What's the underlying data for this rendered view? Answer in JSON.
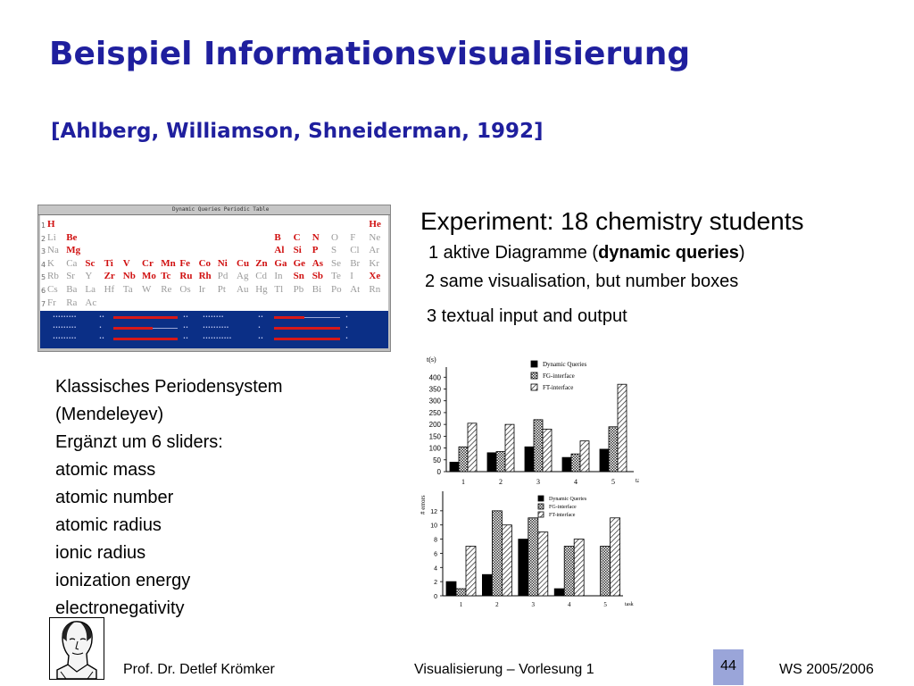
{
  "title": "Beispiel Informationsvisualisierung",
  "subtitle": "[Ahlberg, Williamson, Shneiderman, 1992]",
  "periodic_table": {
    "window_title": "Dynamic Queries Periodic Table",
    "rows": [
      [
        {
          "s": "H",
          "c": 0,
          "hi": true
        },
        {
          "s": "He",
          "c": 17,
          "hi": true
        }
      ],
      [
        {
          "s": "Li",
          "c": 0,
          "hi": false
        },
        {
          "s": "Be",
          "c": 1,
          "hi": true
        },
        {
          "s": "B",
          "c": 12,
          "hi": true
        },
        {
          "s": "C",
          "c": 13,
          "hi": true
        },
        {
          "s": "N",
          "c": 14,
          "hi": true
        },
        {
          "s": "O",
          "c": 15,
          "hi": false
        },
        {
          "s": "F",
          "c": 16,
          "hi": false
        },
        {
          "s": "Ne",
          "c": 17,
          "hi": false
        }
      ],
      [
        {
          "s": "Na",
          "c": 0,
          "hi": false
        },
        {
          "s": "Mg",
          "c": 1,
          "hi": true
        },
        {
          "s": "Al",
          "c": 12,
          "hi": true
        },
        {
          "s": "Si",
          "c": 13,
          "hi": true
        },
        {
          "s": "P",
          "c": 14,
          "hi": true
        },
        {
          "s": "S",
          "c": 15,
          "hi": false
        },
        {
          "s": "Cl",
          "c": 16,
          "hi": false
        },
        {
          "s": "Ar",
          "c": 17,
          "hi": false
        }
      ],
      [
        {
          "s": "K",
          "c": 0,
          "hi": false
        },
        {
          "s": "Ca",
          "c": 1,
          "hi": false
        },
        {
          "s": "Sc",
          "c": 2,
          "hi": true
        },
        {
          "s": "Ti",
          "c": 3,
          "hi": true
        },
        {
          "s": "V",
          "c": 4,
          "hi": true
        },
        {
          "s": "Cr",
          "c": 5,
          "hi": true
        },
        {
          "s": "Mn",
          "c": 6,
          "hi": true
        },
        {
          "s": "Fe",
          "c": 7,
          "hi": true
        },
        {
          "s": "Co",
          "c": 8,
          "hi": true
        },
        {
          "s": "Ni",
          "c": 9,
          "hi": true
        },
        {
          "s": "Cu",
          "c": 10,
          "hi": true
        },
        {
          "s": "Zn",
          "c": 11,
          "hi": true
        },
        {
          "s": "Ga",
          "c": 12,
          "hi": true
        },
        {
          "s": "Ge",
          "c": 13,
          "hi": true
        },
        {
          "s": "As",
          "c": 14,
          "hi": true
        },
        {
          "s": "Se",
          "c": 15,
          "hi": false
        },
        {
          "s": "Br",
          "c": 16,
          "hi": false
        },
        {
          "s": "Kr",
          "c": 17,
          "hi": false
        }
      ],
      [
        {
          "s": "Rb",
          "c": 0,
          "hi": false
        },
        {
          "s": "Sr",
          "c": 1,
          "hi": false
        },
        {
          "s": "Y",
          "c": 2,
          "hi": false
        },
        {
          "s": "Zr",
          "c": 3,
          "hi": true
        },
        {
          "s": "Nb",
          "c": 4,
          "hi": true
        },
        {
          "s": "Mo",
          "c": 5,
          "hi": true
        },
        {
          "s": "Tc",
          "c": 6,
          "hi": true
        },
        {
          "s": "Ru",
          "c": 7,
          "hi": true
        },
        {
          "s": "Rh",
          "c": 8,
          "hi": true
        },
        {
          "s": "Pd",
          "c": 9,
          "hi": false
        },
        {
          "s": "Ag",
          "c": 10,
          "hi": false
        },
        {
          "s": "Cd",
          "c": 11,
          "hi": false
        },
        {
          "s": "In",
          "c": 12,
          "hi": false
        },
        {
          "s": "Sn",
          "c": 13,
          "hi": true
        },
        {
          "s": "Sb",
          "c": 14,
          "hi": true
        },
        {
          "s": "Te",
          "c": 15,
          "hi": false
        },
        {
          "s": "I",
          "c": 16,
          "hi": false
        },
        {
          "s": "Xe",
          "c": 17,
          "hi": true
        }
      ],
      [
        {
          "s": "Cs",
          "c": 0,
          "hi": false
        },
        {
          "s": "Ba",
          "c": 1,
          "hi": false
        },
        {
          "s": "La",
          "c": 2,
          "hi": false
        },
        {
          "s": "Hf",
          "c": 3,
          "hi": false
        },
        {
          "s": "Ta",
          "c": 4,
          "hi": false
        },
        {
          "s": "W",
          "c": 5,
          "hi": false
        },
        {
          "s": "Re",
          "c": 6,
          "hi": false
        },
        {
          "s": "Os",
          "c": 7,
          "hi": false
        },
        {
          "s": "Ir",
          "c": 8,
          "hi": false
        },
        {
          "s": "Pt",
          "c": 9,
          "hi": false
        },
        {
          "s": "Au",
          "c": 10,
          "hi": false
        },
        {
          "s": "Hg",
          "c": 11,
          "hi": false
        },
        {
          "s": "Tl",
          "c": 12,
          "hi": false
        },
        {
          "s": "Pb",
          "c": 13,
          "hi": false
        },
        {
          "s": "Bi",
          "c": 14,
          "hi": false
        },
        {
          "s": "Po",
          "c": 15,
          "hi": false
        },
        {
          "s": "At",
          "c": 16,
          "hi": false
        },
        {
          "s": "Rn",
          "c": 17,
          "hi": false
        }
      ],
      [
        {
          "s": "Fr",
          "c": 0,
          "hi": false
        },
        {
          "s": "Ra",
          "c": 1,
          "hi": false
        },
        {
          "s": "Ac",
          "c": 2,
          "hi": false
        }
      ]
    ],
    "highlight_color": "#d01010",
    "slider_bg": "#0b2f86",
    "slider_bar_color": "#d81818"
  },
  "experiment": {
    "heading": "Experiment: 18 chemistry students",
    "item1_prefix": "1 aktive Diagramme (",
    "item1_bold": "dynamic queries",
    "item1_suffix": ")",
    "item2": "2 same visualisation, but number boxes",
    "item3": "3 textual input and output"
  },
  "periodensystem": {
    "lines": [
      "Klassisches Periodensystem",
      "(Mendeleyev)",
      "Ergänzt um 6 sliders:",
      "atomic mass",
      "atomic number",
      "atomic radius",
      "ionic radius",
      "ionization energy",
      "electronegativity"
    ]
  },
  "chart_data": [
    {
      "type": "bar",
      "ylabel": "t(s)",
      "xlabel": "task",
      "categories": [
        "1",
        "2",
        "3",
        "4",
        "5"
      ],
      "yticks": [
        0,
        50,
        100,
        150,
        200,
        250,
        300,
        350,
        400
      ],
      "ylim": [
        0,
        420
      ],
      "legend": [
        "Dynamic Queries",
        "FG-interface",
        "FT-interface"
      ],
      "series": [
        {
          "name": "Dynamic Queries",
          "values": [
            40,
            80,
            105,
            60,
            95
          ]
        },
        {
          "name": "FG-interface",
          "values": [
            105,
            85,
            220,
            75,
            190
          ]
        },
        {
          "name": "FT-interface",
          "values": [
            205,
            200,
            180,
            130,
            370
          ]
        }
      ]
    },
    {
      "type": "bar",
      "ylabel": "# errors",
      "xlabel": "task",
      "categories": [
        "1",
        "2",
        "3",
        "4",
        "5"
      ],
      "yticks": [
        0,
        2,
        4,
        6,
        8,
        10,
        12
      ],
      "ylim": [
        0,
        14
      ],
      "legend": [
        "Dynamic Queries",
        "FG-interface",
        "FT-interface"
      ],
      "series": [
        {
          "name": "Dynamic Queries",
          "values": [
            2,
            3,
            8,
            1,
            0
          ]
        },
        {
          "name": "FG-interface",
          "values": [
            1,
            12,
            11,
            7,
            7
          ]
        },
        {
          "name": "FT-interface",
          "values": [
            7,
            10,
            9,
            8,
            11
          ]
        }
      ]
    }
  ],
  "footer": {
    "author": "Prof. Dr. Detlef Krömker",
    "course": "Visualisierung – Vorlesung 1",
    "page": "44",
    "semester": "WS 2005/2006"
  }
}
